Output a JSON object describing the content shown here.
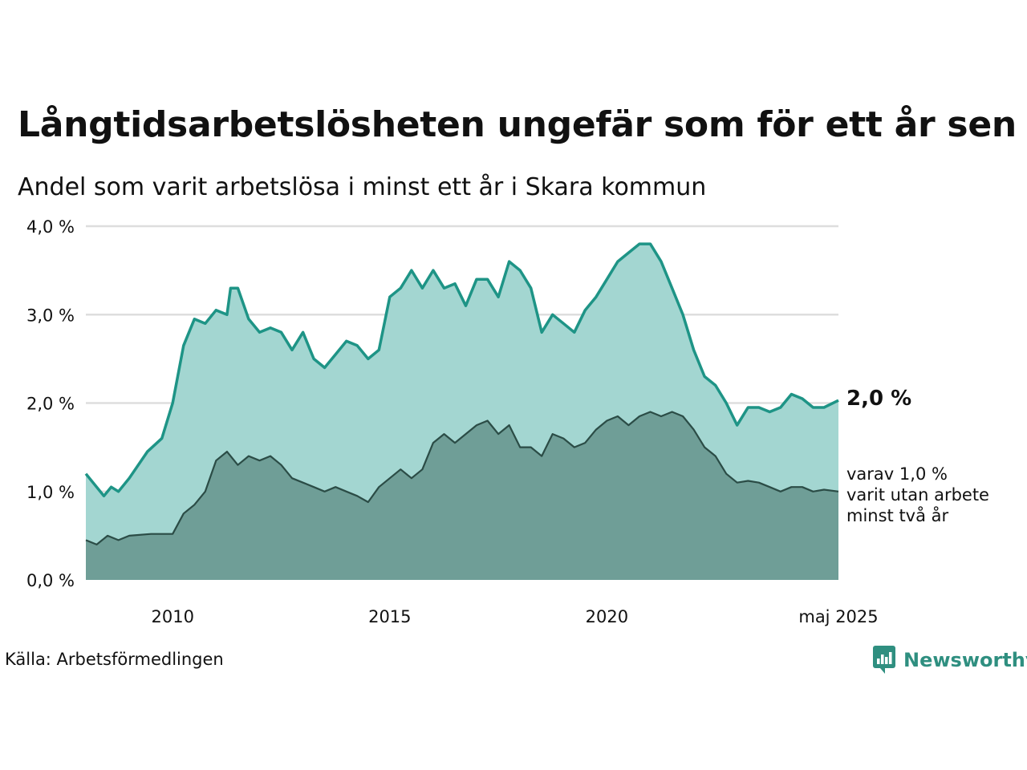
{
  "title": "Långtidsarbetslösheten ungefär som för ett år sen",
  "subtitle": "Andel som varit arbetslösa i minst ett år i Skara kommun",
  "source": "Källa: Arbetsförmedlingen",
  "brand": "Newsworthy",
  "end_label": "2,0 %",
  "sub_label_lines": [
    "varav 1,0 %",
    "varit utan arbete",
    "minst två år"
  ],
  "colors": {
    "total_line": "#1e9486",
    "total_fill": "#a3d6d1",
    "long_line": "#2b4c46",
    "long_fill": "#6f9e97",
    "grid": "#dedede",
    "brand": "#2f8f80"
  },
  "icons": [
    "newsworthy-logo-icon"
  ],
  "chart_data": {
    "type": "area",
    "x_range": [
      "2008-01",
      "2025-05"
    ],
    "x_ticks": [
      {
        "x": "2010-01",
        "label": "2010"
      },
      {
        "x": "2015-01",
        "label": "2015"
      },
      {
        "x": "2020-01",
        "label": "2020"
      },
      {
        "x": "2025-05",
        "label": "maj 2025"
      }
    ],
    "y_ticks": [
      {
        "v": 0,
        "label": "0,0 %"
      },
      {
        "v": 1,
        "label": "1,0 %"
      },
      {
        "v": 2,
        "label": "2,0 %"
      },
      {
        "v": 3,
        "label": "3,0 %"
      },
      {
        "v": 4,
        "label": "4,0 %"
      }
    ],
    "ylim": [
      0,
      4
    ],
    "grid": true,
    "series": [
      {
        "key": "total",
        "points": [
          [
            "2008-01",
            1.2
          ],
          [
            "2008-06",
            0.95
          ],
          [
            "2008-08",
            1.05
          ],
          [
            "2008-10",
            1.0
          ],
          [
            "2009-01",
            1.15
          ],
          [
            "2009-06",
            1.45
          ],
          [
            "2009-10",
            1.6
          ],
          [
            "2010-01",
            2.0
          ],
          [
            "2010-04",
            2.65
          ],
          [
            "2010-07",
            2.95
          ],
          [
            "2010-10",
            2.9
          ],
          [
            "2011-01",
            3.05
          ],
          [
            "2011-04",
            3.0
          ],
          [
            "2011-05",
            3.3
          ],
          [
            "2011-07",
            3.3
          ],
          [
            "2011-10",
            2.95
          ],
          [
            "2012-01",
            2.8
          ],
          [
            "2012-04",
            2.85
          ],
          [
            "2012-07",
            2.8
          ],
          [
            "2012-10",
            2.6
          ],
          [
            "2013-01",
            2.8
          ],
          [
            "2013-04",
            2.5
          ],
          [
            "2013-07",
            2.4
          ],
          [
            "2013-10",
            2.55
          ],
          [
            "2014-01",
            2.7
          ],
          [
            "2014-04",
            2.65
          ],
          [
            "2014-07",
            2.5
          ],
          [
            "2014-10",
            2.6
          ],
          [
            "2015-01",
            3.2
          ],
          [
            "2015-04",
            3.3
          ],
          [
            "2015-07",
            3.5
          ],
          [
            "2015-10",
            3.3
          ],
          [
            "2016-01",
            3.5
          ],
          [
            "2016-04",
            3.3
          ],
          [
            "2016-07",
            3.35
          ],
          [
            "2016-10",
            3.1
          ],
          [
            "2017-01",
            3.4
          ],
          [
            "2017-04",
            3.4
          ],
          [
            "2017-07",
            3.2
          ],
          [
            "2017-10",
            3.6
          ],
          [
            "2018-01",
            3.5
          ],
          [
            "2018-04",
            3.3
          ],
          [
            "2018-07",
            2.8
          ],
          [
            "2018-10",
            3.0
          ],
          [
            "2019-01",
            2.9
          ],
          [
            "2019-04",
            2.8
          ],
          [
            "2019-07",
            3.05
          ],
          [
            "2019-10",
            3.2
          ],
          [
            "2020-01",
            3.4
          ],
          [
            "2020-04",
            3.6
          ],
          [
            "2020-07",
            3.7
          ],
          [
            "2020-10",
            3.8
          ],
          [
            "2021-01",
            3.8
          ],
          [
            "2021-04",
            3.6
          ],
          [
            "2021-07",
            3.3
          ],
          [
            "2021-10",
            3.0
          ],
          [
            "2022-01",
            2.6
          ],
          [
            "2022-04",
            2.3
          ],
          [
            "2022-07",
            2.2
          ],
          [
            "2022-10",
            2.0
          ],
          [
            "2023-01",
            1.75
          ],
          [
            "2023-04",
            1.95
          ],
          [
            "2023-07",
            1.95
          ],
          [
            "2023-10",
            1.9
          ],
          [
            "2024-01",
            1.95
          ],
          [
            "2024-04",
            2.1
          ],
          [
            "2024-07",
            2.05
          ],
          [
            "2024-10",
            1.95
          ],
          [
            "2025-01",
            1.95
          ],
          [
            "2025-05",
            2.03
          ]
        ]
      },
      {
        "key": "long",
        "points": [
          [
            "2008-01",
            0.45
          ],
          [
            "2008-04",
            0.4
          ],
          [
            "2008-07",
            0.5
          ],
          [
            "2008-10",
            0.45
          ],
          [
            "2009-01",
            0.5
          ],
          [
            "2009-07",
            0.52
          ],
          [
            "2010-01",
            0.52
          ],
          [
            "2010-04",
            0.75
          ],
          [
            "2010-07",
            0.85
          ],
          [
            "2010-10",
            1.0
          ],
          [
            "2011-01",
            1.35
          ],
          [
            "2011-04",
            1.45
          ],
          [
            "2011-07",
            1.3
          ],
          [
            "2011-10",
            1.4
          ],
          [
            "2012-01",
            1.35
          ],
          [
            "2012-04",
            1.4
          ],
          [
            "2012-07",
            1.3
          ],
          [
            "2012-10",
            1.15
          ],
          [
            "2013-01",
            1.1
          ],
          [
            "2013-04",
            1.05
          ],
          [
            "2013-07",
            1.0
          ],
          [
            "2013-10",
            1.05
          ],
          [
            "2014-01",
            1.0
          ],
          [
            "2014-04",
            0.95
          ],
          [
            "2014-07",
            0.88
          ],
          [
            "2014-10",
            1.05
          ],
          [
            "2015-01",
            1.15
          ],
          [
            "2015-04",
            1.25
          ],
          [
            "2015-07",
            1.15
          ],
          [
            "2015-10",
            1.25
          ],
          [
            "2016-01",
            1.55
          ],
          [
            "2016-04",
            1.65
          ],
          [
            "2016-07",
            1.55
          ],
          [
            "2016-10",
            1.65
          ],
          [
            "2017-01",
            1.75
          ],
          [
            "2017-04",
            1.8
          ],
          [
            "2017-07",
            1.65
          ],
          [
            "2017-10",
            1.75
          ],
          [
            "2018-01",
            1.5
          ],
          [
            "2018-04",
            1.5
          ],
          [
            "2018-07",
            1.4
          ],
          [
            "2018-10",
            1.65
          ],
          [
            "2019-01",
            1.6
          ],
          [
            "2019-04",
            1.5
          ],
          [
            "2019-07",
            1.55
          ],
          [
            "2019-10",
            1.7
          ],
          [
            "2020-01",
            1.8
          ],
          [
            "2020-04",
            1.85
          ],
          [
            "2020-07",
            1.75
          ],
          [
            "2020-10",
            1.85
          ],
          [
            "2021-01",
            1.9
          ],
          [
            "2021-04",
            1.85
          ],
          [
            "2021-07",
            1.9
          ],
          [
            "2021-10",
            1.85
          ],
          [
            "2022-01",
            1.7
          ],
          [
            "2022-04",
            1.5
          ],
          [
            "2022-07",
            1.4
          ],
          [
            "2022-10",
            1.2
          ],
          [
            "2023-01",
            1.1
          ],
          [
            "2023-04",
            1.12
          ],
          [
            "2023-07",
            1.1
          ],
          [
            "2023-10",
            1.05
          ],
          [
            "2024-01",
            1.0
          ],
          [
            "2024-04",
            1.05
          ],
          [
            "2024-07",
            1.05
          ],
          [
            "2024-10",
            1.0
          ],
          [
            "2025-01",
            1.02
          ],
          [
            "2025-05",
            1.0
          ]
        ]
      }
    ]
  }
}
